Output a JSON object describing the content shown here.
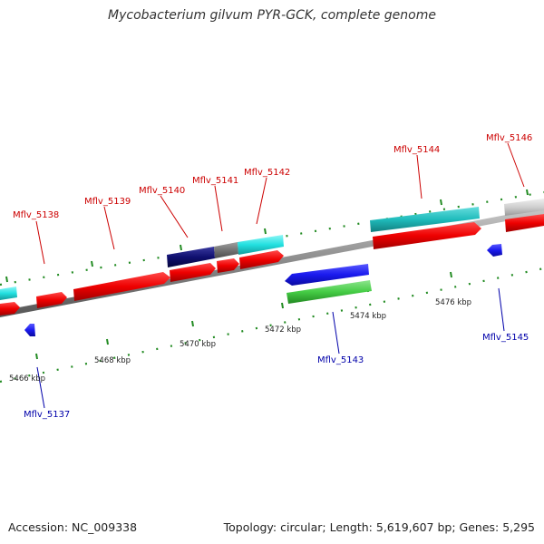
{
  "title": "Mycobacterium gilvum PYR-GCK, complete genome",
  "footer": {
    "accession": "Accession: NC_009338",
    "summary": "Topology: circular; Length: 5,619,607 bp; Genes: 5,295"
  },
  "colors": {
    "label_top": "#cc0000",
    "label_bottom": "#0000aa",
    "tick": "#228b22",
    "backbone": "#808080"
  },
  "kbp_labels": [
    {
      "text": "5466 kbp",
      "kbp": 5466
    },
    {
      "text": "5468 kbp",
      "kbp": 5468
    },
    {
      "text": "5470 kbp",
      "kbp": 5470
    },
    {
      "text": "5472 kbp",
      "kbp": 5472
    },
    {
      "text": "5474 kbp",
      "kbp": 5474
    },
    {
      "text": "5476 kbp",
      "kbp": 5476
    }
  ],
  "gene_labels_top": [
    {
      "text": "Mflv_5138"
    },
    {
      "text": "Mflv_5139"
    },
    {
      "text": "Mflv_5140"
    },
    {
      "text": "Mflv_5141"
    },
    {
      "text": "Mflv_5142"
    },
    {
      "text": "Mflv_5144"
    },
    {
      "text": "Mflv_5146"
    }
  ],
  "gene_labels_bottom": [
    {
      "text": "Mflv_5137"
    },
    {
      "text": "Mflv_5143"
    },
    {
      "text": "Mflv_5145"
    }
  ]
}
